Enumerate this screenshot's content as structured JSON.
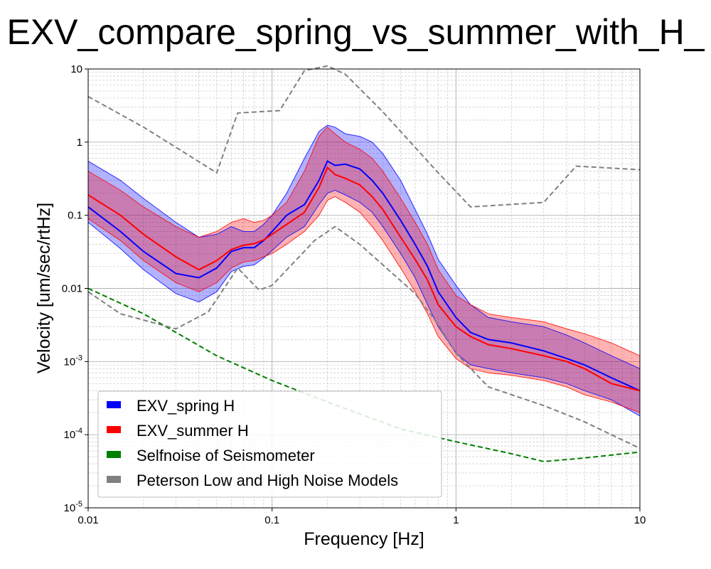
{
  "chart_data": {
    "type": "line",
    "title": "EXV_compare_spring_vs_summer_with_H_",
    "xlabel": "Frequency [Hz]",
    "ylabel": "Velocity [um/sec/rtHz]",
    "xscale": "log",
    "yscale": "log",
    "xlim": [
      0.01,
      10
    ],
    "ylim": [
      1e-05,
      10
    ],
    "x_ticks": [
      {
        "value": 0.01,
        "label": "0.01"
      },
      {
        "value": 0.1,
        "label": "0.1"
      },
      {
        "value": 1,
        "label": "1"
      },
      {
        "value": 10,
        "label": "10"
      }
    ],
    "y_ticks": [
      {
        "value": 1e-05,
        "base": "10",
        "exp": "-5"
      },
      {
        "value": 0.0001,
        "base": "10",
        "exp": "-4"
      },
      {
        "value": 0.001,
        "base": "10",
        "exp": "-3"
      },
      {
        "value": 0.01,
        "label": "0.01"
      },
      {
        "value": 0.1,
        "label": "0.1"
      },
      {
        "value": 1,
        "label": "1"
      },
      {
        "value": 10,
        "label": "10"
      }
    ],
    "grid": true,
    "legend_position": "lower-left",
    "series": [
      {
        "name": "EXV_spring H",
        "color": "#0000ff",
        "x": [
          0.01,
          0.015,
          0.02,
          0.03,
          0.04,
          0.05,
          0.06,
          0.07,
          0.08,
          0.09,
          0.1,
          0.12,
          0.15,
          0.18,
          0.2,
          0.22,
          0.25,
          0.3,
          0.35,
          0.4,
          0.5,
          0.6,
          0.7,
          0.8,
          1,
          1.2,
          1.5,
          2,
          3,
          4,
          5,
          7,
          10
        ],
        "median": [
          0.13,
          0.06,
          0.032,
          0.016,
          0.014,
          0.019,
          0.032,
          0.036,
          0.036,
          0.045,
          0.06,
          0.1,
          0.14,
          0.3,
          0.55,
          0.48,
          0.5,
          0.43,
          0.3,
          0.2,
          0.085,
          0.04,
          0.02,
          0.009,
          0.004,
          0.0025,
          0.002,
          0.0018,
          0.0014,
          0.0011,
          0.0009,
          0.0006,
          0.0004
        ],
        "upper": [
          0.55,
          0.3,
          0.17,
          0.08,
          0.05,
          0.055,
          0.07,
          0.06,
          0.06,
          0.075,
          0.1,
          0.2,
          0.6,
          1.4,
          1.7,
          1.6,
          1.3,
          1.2,
          1.0,
          0.7,
          0.3,
          0.12,
          0.055,
          0.025,
          0.011,
          0.006,
          0.004,
          0.0035,
          0.003,
          0.0023,
          0.0018,
          0.0012,
          0.0008
        ],
        "lower": [
          0.08,
          0.035,
          0.018,
          0.0085,
          0.0065,
          0.009,
          0.017,
          0.02,
          0.021,
          0.026,
          0.033,
          0.05,
          0.07,
          0.14,
          0.2,
          0.22,
          0.19,
          0.15,
          0.11,
          0.07,
          0.03,
          0.014,
          0.006,
          0.003,
          0.0013,
          0.0009,
          0.0008,
          0.0007,
          0.0006,
          0.0005,
          0.0004,
          0.0003,
          0.00018
        ]
      },
      {
        "name": "EXV_summer H",
        "color": "#ff0000",
        "x": [
          0.01,
          0.015,
          0.02,
          0.03,
          0.04,
          0.05,
          0.06,
          0.07,
          0.08,
          0.09,
          0.1,
          0.12,
          0.15,
          0.18,
          0.2,
          0.22,
          0.25,
          0.3,
          0.35,
          0.4,
          0.5,
          0.6,
          0.7,
          0.8,
          1,
          1.2,
          1.5,
          2,
          3,
          4,
          5,
          7,
          10
        ],
        "median": [
          0.19,
          0.1,
          0.055,
          0.027,
          0.018,
          0.024,
          0.034,
          0.039,
          0.041,
          0.046,
          0.055,
          0.075,
          0.11,
          0.24,
          0.45,
          0.36,
          0.32,
          0.26,
          0.18,
          0.12,
          0.05,
          0.025,
          0.013,
          0.006,
          0.003,
          0.0022,
          0.0017,
          0.0015,
          0.0012,
          0.001,
          0.0008,
          0.0005,
          0.0004
        ],
        "upper": [
          0.4,
          0.22,
          0.13,
          0.07,
          0.05,
          0.06,
          0.08,
          0.09,
          0.08,
          0.085,
          0.1,
          0.15,
          0.4,
          1.2,
          1.6,
          1.3,
          1.0,
          0.8,
          0.6,
          0.4,
          0.17,
          0.08,
          0.04,
          0.018,
          0.008,
          0.006,
          0.0045,
          0.004,
          0.0035,
          0.0028,
          0.0024,
          0.0018,
          0.0012
        ],
        "lower": [
          0.09,
          0.045,
          0.024,
          0.012,
          0.009,
          0.012,
          0.019,
          0.023,
          0.024,
          0.027,
          0.03,
          0.04,
          0.06,
          0.1,
          0.16,
          0.18,
          0.15,
          0.11,
          0.07,
          0.045,
          0.019,
          0.009,
          0.0045,
          0.0022,
          0.0011,
          0.0008,
          0.0007,
          0.00065,
          0.00055,
          0.00045,
          0.00035,
          0.00028,
          0.0002
        ]
      },
      {
        "name": "Selfnoise of Seismometer",
        "color": "#008000",
        "style": "dashed",
        "x": [
          0.01,
          0.02,
          0.05,
          0.1,
          0.2,
          0.5,
          1,
          2,
          3,
          5,
          10
        ],
        "values": [
          0.01,
          0.0045,
          0.0012,
          0.00055,
          0.00028,
          0.00012,
          8e-05,
          5.5e-05,
          4.3e-05,
          4.8e-05,
          5.8e-05
        ]
      },
      {
        "name": "Peterson Low and High Noise Models",
        "color": "#808080",
        "style": "dashed",
        "lines": [
          {
            "x": [
              0.01,
              0.02,
              0.03,
              0.05,
              0.065,
              0.11,
              0.15,
              0.2,
              0.25,
              0.4,
              0.8,
              1.2,
              3,
              4.5,
              10
            ],
            "values": [
              4.2,
              1.6,
              0.85,
              0.38,
              2.5,
              2.7,
              9.5,
              11,
              8.5,
              2.6,
              0.38,
              0.13,
              0.15,
              0.47,
              0.42
            ]
          },
          {
            "x": [
              0.01,
              0.015,
              0.03,
              0.045,
              0.065,
              0.085,
              0.1,
              0.17,
              0.22,
              0.3,
              0.6,
              0.8,
              1,
              1.5,
              3,
              5,
              10
            ],
            "values": [
              0.009,
              0.0045,
              0.0028,
              0.0048,
              0.019,
              0.0095,
              0.011,
              0.045,
              0.07,
              0.04,
              0.0085,
              0.0032,
              0.0013,
              0.00045,
              0.00025,
              0.00015,
              6.5e-05
            ]
          }
        ]
      }
    ],
    "legend": [
      {
        "label": "EXV_spring H",
        "color": "#0000ff"
      },
      {
        "label": "EXV_summer H",
        "color": "#ff0000"
      },
      {
        "label": "Selfnoise of Seismometer",
        "color": "#008000"
      },
      {
        "label": "Peterson Low and High Noise Models",
        "color": "#808080"
      }
    ]
  }
}
